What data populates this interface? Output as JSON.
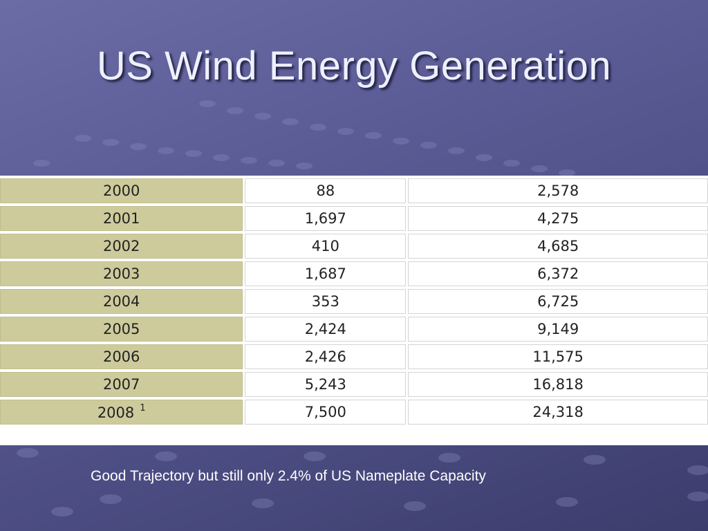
{
  "slide": {
    "title": "US Wind Energy Generation",
    "caption": "Good Trajectory but still only 2.4% of US Nameplate Capacity"
  },
  "table": {
    "rows": [
      {
        "year": "2000",
        "footnote": "",
        "col2": "88",
        "col3": "2,578"
      },
      {
        "year": "2001",
        "footnote": "",
        "col2": "1,697",
        "col3": "4,275"
      },
      {
        "year": "2002",
        "footnote": "",
        "col2": "410",
        "col3": "4,685"
      },
      {
        "year": "2003",
        "footnote": "",
        "col2": "1,687",
        "col3": "6,372"
      },
      {
        "year": "2004",
        "footnote": "",
        "col2": "353",
        "col3": "6,725"
      },
      {
        "year": "2005",
        "footnote": "",
        "col2": "2,424",
        "col3": "9,149"
      },
      {
        "year": "2006",
        "footnote": "",
        "col2": "2,426",
        "col3": "11,575"
      },
      {
        "year": "2007",
        "footnote": "",
        "col2": "5,243",
        "col3": "16,818"
      },
      {
        "year": "2008",
        "footnote": "1",
        "col2": "7,500",
        "col3": "24,318"
      }
    ]
  },
  "colors": {
    "background": "#5a5b94",
    "year_cell": "#cdcb9c",
    "title_text": "#eef0ff"
  }
}
